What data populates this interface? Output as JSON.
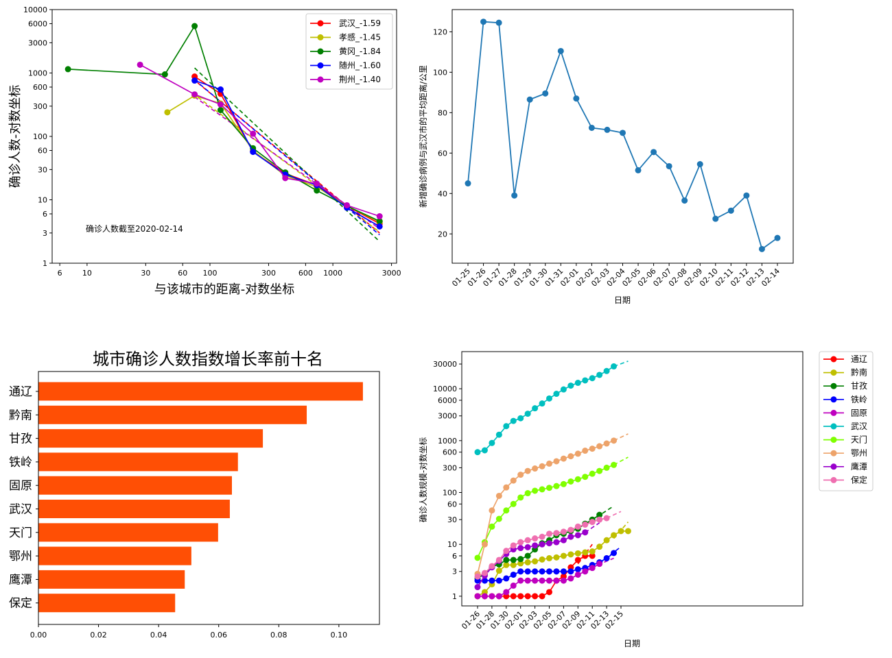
{
  "chart_data": [
    {
      "id": "chart1",
      "type": "scatter",
      "xlabel": "与该城市的距离-对数坐标",
      "ylabel": "确诊人数-对数坐标",
      "x_log": true,
      "y_log": true,
      "xlim": [
        5.2,
        3300
      ],
      "ylim": [
        1,
        10000
      ],
      "xticks": [
        6,
        10,
        30,
        60,
        100,
        300,
        600,
        1000,
        3000
      ],
      "yticks": [
        1,
        3,
        6,
        10,
        30,
        60,
        100,
        300,
        600,
        1000,
        3000,
        6000,
        10000
      ],
      "annotation": "确诊人数截至2020-02-14",
      "legend_position": "upper right",
      "series": [
        {
          "name": "武汉_-1.59",
          "color": "#ff0000",
          "points": [
            [
              75,
              880
            ],
            [
              122,
              470
            ],
            [
              224,
              58
            ],
            [
              410,
              26
            ],
            [
              740,
              17
            ],
            [
              1300,
              8
            ],
            [
              2400,
              4.2
            ]
          ],
          "fit": [
            [
              72,
              820
            ],
            [
              2400,
              3.0
            ]
          ]
        },
        {
          "name": "孝感_-1.45",
          "color": "#bfbf00",
          "points": [
            [
              45,
              240
            ],
            [
              75,
              440
            ],
            [
              122,
              330
            ],
            [
              224,
              60
            ],
            [
              410,
              24
            ],
            [
              740,
              16
            ],
            [
              1300,
              8
            ],
            [
              2400,
              4.5
            ]
          ],
          "fit": [
            [
              72,
              480
            ],
            [
              2400,
              3.1
            ]
          ]
        },
        {
          "name": "黄冈_-1.84",
          "color": "#007f00",
          "points": [
            [
              7,
              1150
            ],
            [
              43,
              950
            ],
            [
              75,
              5500
            ],
            [
              122,
              260
            ],
            [
              224,
              65
            ],
            [
              410,
              27
            ],
            [
              740,
              14
            ],
            [
              1300,
              8
            ],
            [
              2400,
              4.6
            ]
          ],
          "fit": [
            [
              75,
              1200
            ],
            [
              2400,
              2.2
            ]
          ]
        },
        {
          "name": "随州_-1.60",
          "color": "#0000ff",
          "points": [
            [
              75,
              760
            ],
            [
              122,
              550
            ],
            [
              224,
              57
            ],
            [
              410,
              25
            ],
            [
              740,
              17
            ],
            [
              1300,
              7.5
            ],
            [
              2400,
              3.8
            ]
          ],
          "fit": [
            [
              75,
              780
            ],
            [
              2400,
              2.8
            ]
          ]
        },
        {
          "name": "荆州_-1.40",
          "color": "#bf00bf",
          "points": [
            [
              27,
              1350
            ],
            [
              75,
              460
            ],
            [
              122,
              320
            ],
            [
              224,
              110
            ],
            [
              410,
              22
            ],
            [
              740,
              18
            ],
            [
              1300,
              8.2
            ],
            [
              2400,
              5.5
            ]
          ],
          "fit": [
            [
              75,
              420
            ],
            [
              2400,
              3.5
            ]
          ]
        }
      ]
    },
    {
      "id": "chart2",
      "type": "line",
      "xlabel": "日期",
      "ylabel": "新增确诊病例与武汉市的平均距离/公里",
      "ylim": [
        5.5,
        131
      ],
      "yticks": [
        20,
        40,
        60,
        80,
        100,
        120
      ],
      "color": "#1f77b4",
      "categories": [
        "01-25",
        "01-26",
        "01-27",
        "01-28",
        "01-29",
        "01-30",
        "01-31",
        "02-01",
        "02-02",
        "02-03",
        "02-04",
        "02-05",
        "02-06",
        "02-07",
        "02-08",
        "02-09",
        "02-10",
        "02-11",
        "02-12",
        "02-13",
        "02-14"
      ],
      "values": [
        45,
        125,
        124.5,
        39,
        86.5,
        89.5,
        110.5,
        87,
        72.5,
        71.5,
        70,
        51.5,
        60.5,
        53.5,
        36.5,
        54.5,
        27.5,
        31.5,
        39,
        12.5,
        18
      ]
    },
    {
      "id": "chart3",
      "type": "bar",
      "orientation": "horizontal",
      "title": "城市确诊人数指数增长率前十名",
      "color": "#ff4f05",
      "xlim": [
        0,
        0.1135
      ],
      "xticks": [
        "0.00",
        "0.02",
        "0.04",
        "0.06",
        "0.08",
        "0.10"
      ],
      "categories": [
        "通辽",
        "黔南",
        "甘孜",
        "铁岭",
        "固原",
        "武汉",
        "天门",
        "鄂州",
        "鹰潭",
        "保定"
      ],
      "values": [
        0.108,
        0.0893,
        0.0747,
        0.0664,
        0.0644,
        0.0637,
        0.0598,
        0.0509,
        0.0487,
        0.0455
      ]
    },
    {
      "id": "chart4",
      "type": "line",
      "xlabel": "日期",
      "ylabel": "确诊人数规模-对数坐标",
      "y_log": true,
      "ylim": [
        0.65,
        52000
      ],
      "yticks": [
        1,
        3,
        6,
        10,
        30,
        60,
        100,
        300,
        600,
        1000,
        3000,
        6000,
        10000,
        30000
      ],
      "xticks": [
        "01-26",
        "01-28",
        "01-30",
        "02-01",
        "02-03",
        "02-05",
        "02-07",
        "02-09",
        "02-11",
        "02-13",
        "02-15"
      ],
      "x_start": "01-26",
      "legend_position": "outside right",
      "series": [
        {
          "name": "通辽",
          "color": "#ff0000",
          "values": [
            1,
            1,
            1,
            1,
            1,
            1,
            1,
            1,
            1,
            1,
            1.2,
            2,
            2.4,
            3.6,
            5,
            6,
            6
          ],
          "fit_start": 14,
          "fit_end_date": "02-11",
          "fit_values": [
            4.2,
            10
          ]
        },
        {
          "name": "黔南",
          "color": "#bfbf00",
          "values": [
            1,
            1.2,
            1.7,
            3.1,
            4,
            4,
            4.3,
            4.5,
            4.7,
            5.1,
            5.4,
            5.6,
            6,
            6.4,
            6.7,
            7,
            7.3,
            9,
            12,
            15,
            18,
            18
          ],
          "fit_start": 19,
          "fit_end_date": "02-16",
          "fit_values": [
            13,
            27
          ]
        },
        {
          "name": "甘孜",
          "color": "#007f00",
          "values": [
            2.2,
            2.7,
            3.7,
            4.1,
            5,
            5,
            5.2,
            6,
            8,
            10.5,
            12,
            15,
            16,
            18,
            20,
            25,
            30,
            37
          ],
          "fit_start": 15,
          "fit_end_date": "02-14",
          "fit_values": [
            24,
            55
          ]
        },
        {
          "name": "铁岭",
          "color": "#0000ff",
          "values": [
            2,
            2,
            2,
            2,
            2.2,
            2.6,
            3,
            3,
            3,
            3,
            3,
            3,
            3,
            3,
            3.3,
            3.5,
            4,
            4.5,
            5.4,
            6.8
          ],
          "fit_start": 17,
          "fit_end_date": "02-15",
          "fit_values": [
            4.3,
            9
          ]
        },
        {
          "name": "固原",
          "color": "#bf00bf",
          "values": [
            1,
            1,
            1,
            1,
            1.2,
            1.6,
            2,
            2,
            2,
            2,
            2,
            2,
            2,
            2.2,
            2.6,
            3,
            3.5,
            4.2
          ],
          "fit_start": 15,
          "fit_end_date": "02-14",
          "fit_values": [
            3.2,
            5.4
          ]
        },
        {
          "name": "武汉",
          "color": "#00bfbf",
          "values": [
            600,
            650,
            900,
            1300,
            1900,
            2400,
            2700,
            3300,
            4200,
            5200,
            6500,
            8000,
            9700,
            11500,
            13000,
            14500,
            16000,
            18500,
            22000,
            27000
          ],
          "fit_start": 19,
          "fit_end_date": "02-16",
          "fit_values": [
            27000,
            34000
          ]
        },
        {
          "name": "天门",
          "color": "#7fff00",
          "values": [
            5.5,
            11,
            22,
            31,
            45,
            60,
            80,
            97,
            108,
            115,
            123,
            133,
            145,
            163,
            180,
            200,
            230,
            260,
            300,
            340
          ],
          "fit_start": 19,
          "fit_end_date": "02-16",
          "fit_values": [
            340,
            480
          ]
        },
        {
          "name": "鄂州",
          "color": "#eda36a",
          "values": [
            2.7,
            10,
            45,
            86,
            125,
            170,
            220,
            260,
            290,
            320,
            360,
            400,
            450,
            500,
            560,
            640,
            700,
            780,
            880,
            1000
          ],
          "fit_start": 19,
          "fit_end_date": "02-16",
          "fit_values": [
            1000,
            1350
          ]
        },
        {
          "name": "鹰潭",
          "color": "#9900cc",
          "values": [
            1.5,
            2.5,
            3.6,
            4.8,
            6.5,
            8,
            8.5,
            8.8,
            9.5,
            10,
            10.5,
            11,
            12,
            14,
            15,
            17
          ],
          "fit_start": 15,
          "fit_end_date": "02-12",
          "fit_values": [
            17,
            26
          ]
        },
        {
          "name": "保定",
          "color": "#ef6fb0",
          "values": [
            2.4,
            2.8,
            3.8,
            5,
            7.5,
            9.5,
            11,
            12,
            13,
            14,
            16,
            16.5,
            17.5,
            19,
            22,
            24,
            27,
            30,
            32
          ],
          "fit_start": 18,
          "fit_end_date": "02-15",
          "fit_values": [
            32,
            43
          ]
        }
      ]
    }
  ]
}
